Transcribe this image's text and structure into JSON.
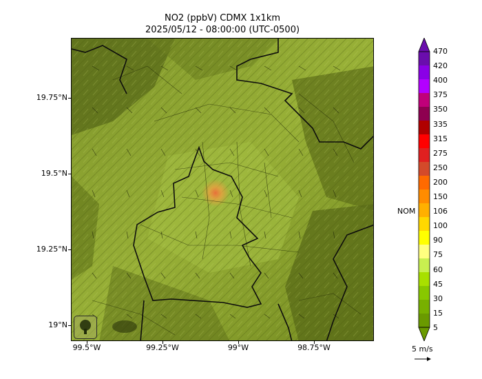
{
  "title_line1": "NO2 (ppbV) CDMX 1x1km",
  "title_line2": "2025/05/12 - 08:00:00 (UTC-0500)",
  "lat_labels": [
    "19.75°N",
    "19.5°N",
    "19.25°N",
    "19°N"
  ],
  "lon_labels": [
    "99.5°W",
    "99.25°W",
    "99°W",
    "98.75°W"
  ],
  "colorbar": {
    "levels": [
      "470",
      "420",
      "400",
      "375",
      "350",
      "335",
      "315",
      "275",
      "250",
      "200",
      "150",
      "106",
      "100",
      "90",
      "75",
      "60",
      "45",
      "30",
      "15",
      "5"
    ],
    "colors": [
      "#6a0dad",
      "#8a00e6",
      "#b300ff",
      "#c0007a",
      "#8e0050",
      "#b00000",
      "#ff0000",
      "#e02020",
      "#d44a2a",
      "#ff6a00",
      "#ff8c00",
      "#ffb000",
      "#ffd800",
      "#ffff00",
      "#ffff80",
      "#c8f050",
      "#a8e000",
      "#88c800",
      "#78b000",
      "#6a9a00"
    ],
    "nom_label": "NOM"
  },
  "wind_scale_label": "5 m/s",
  "logos": [
    "sedema-logo",
    "ciudad-logo"
  ],
  "hotspot_color": "#e8a040",
  "terrain_colors": [
    "#6b7d1f",
    "#8aa332",
    "#9fb83e",
    "#556815"
  ]
}
